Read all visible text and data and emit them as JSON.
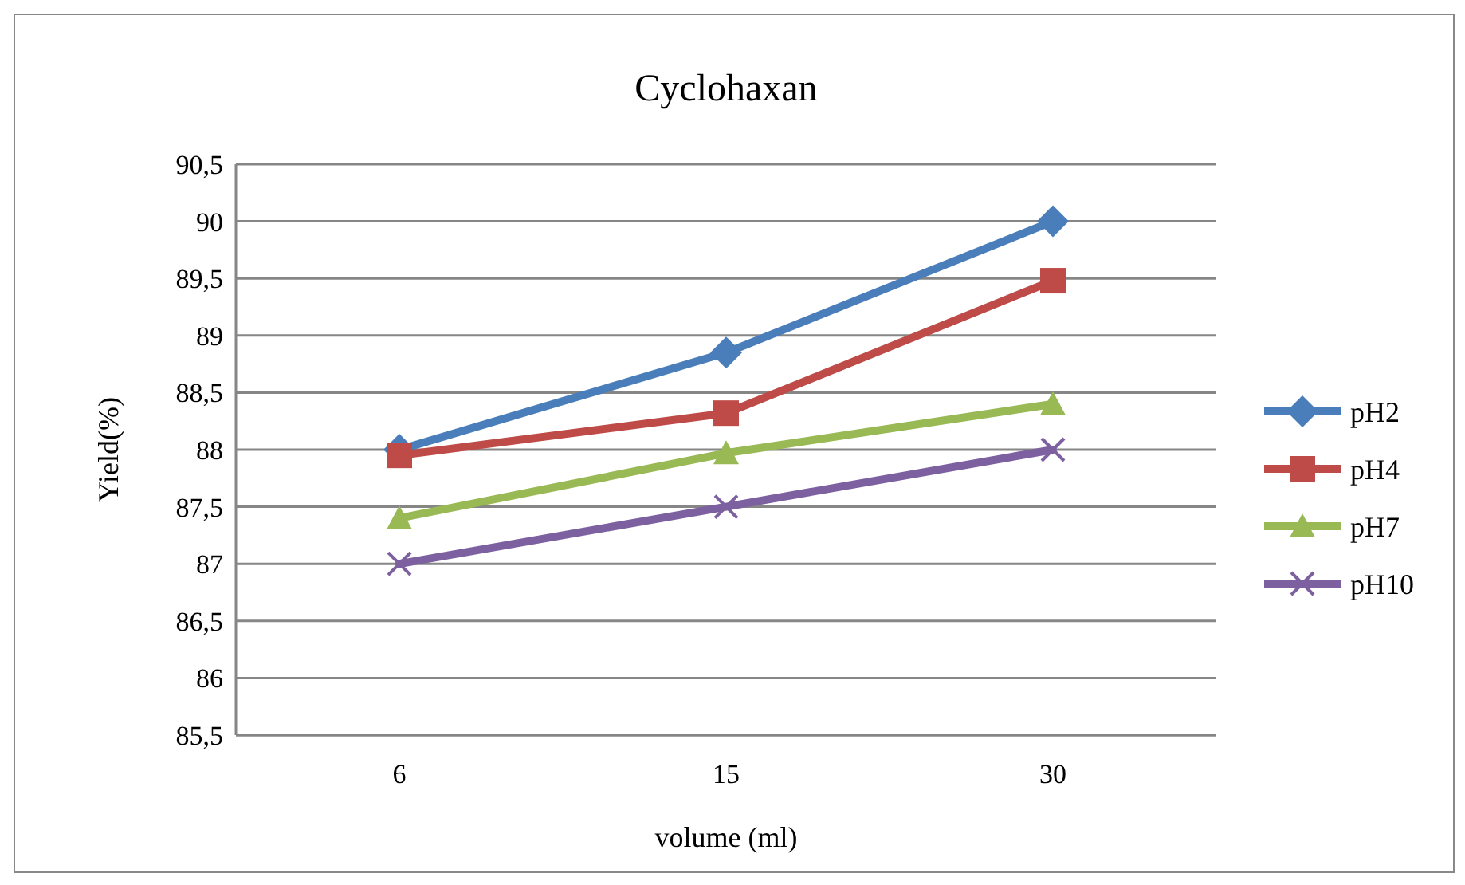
{
  "chart_data": {
    "type": "line",
    "title": "Cyclohaxan",
    "xlabel": "volume  (ml)",
    "ylabel": "Yield(%)",
    "categories": [
      "6",
      "15",
      "30"
    ],
    "series": [
      {
        "name": "pH2",
        "color": "#4a7ebb",
        "marker": "diamond",
        "values": [
          88,
          88.85,
          90
        ]
      },
      {
        "name": "pH4",
        "color": "#be4b48",
        "marker": "square",
        "values": [
          87.95,
          88.32,
          89.48
        ]
      },
      {
        "name": "pH7",
        "color": "#98b954",
        "marker": "triangle",
        "values": [
          87.4,
          87.97,
          88.4
        ]
      },
      {
        "name": "pH10",
        "color": "#7d60a0",
        "marker": "cross",
        "values": [
          87,
          87.5,
          88
        ]
      }
    ],
    "ylim": [
      85.5,
      90.5
    ],
    "yticks": [
      {
        "value": 85.5,
        "label": "85,5"
      },
      86,
      {
        "value": 86.5,
        "label": "86,5"
      },
      87,
      {
        "value": 87.5,
        "label": "87,5"
      },
      88,
      {
        "value": 88.5,
        "label": "88,5"
      },
      89,
      {
        "value": 89.5,
        "label": "89,5"
      },
      90,
      {
        "value": 90.5,
        "label": "90,5"
      }
    ],
    "grid": "y",
    "legend": "right",
    "line_style": "solid"
  }
}
